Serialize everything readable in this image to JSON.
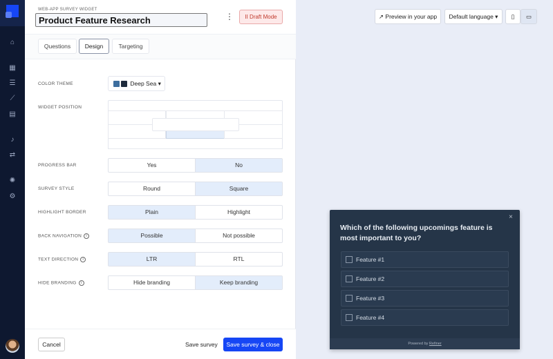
{
  "sidebar": {
    "icons": [
      "home-icon",
      "table-icon",
      "list-icon",
      "chart-icon",
      "layout-icon",
      "bell-icon",
      "sync-icon",
      "lightbulb-icon",
      "gear-icon"
    ]
  },
  "header": {
    "subtitle": "WEB-APP SURVEY WIDGET",
    "title": "Product Feature Research",
    "draft_label": "II Draft Mode",
    "more": "⋮"
  },
  "tabs": [
    {
      "label": "Questions"
    },
    {
      "label": "Design",
      "active": true
    },
    {
      "label": "Targeting"
    }
  ],
  "design": {
    "color_theme": {
      "label": "COLOR THEME",
      "value": "Deep Sea",
      "swatches": [
        "#3d6e9e",
        "#1e2b3c"
      ]
    },
    "widget_position": {
      "label": "WIDGET POSITION",
      "selected": "bottom-center"
    },
    "options": [
      {
        "label": "PROGRESS BAR",
        "choices": [
          "Yes",
          "No"
        ],
        "selected": 1,
        "info": false
      },
      {
        "label": "SURVEY STYLE",
        "choices": [
          "Round",
          "Square"
        ],
        "selected": 1,
        "info": false
      },
      {
        "label": "HIGHLIGHT BORDER",
        "choices": [
          "Plain",
          "Highlight"
        ],
        "selected": 0,
        "info": false
      },
      {
        "label": "BACK NAVIGATION",
        "choices": [
          "Possible",
          "Not possible"
        ],
        "selected": 0,
        "info": true
      },
      {
        "label": "TEXT DIRECTION",
        "choices": [
          "LTR",
          "RTL"
        ],
        "selected": 0,
        "info": true
      },
      {
        "label": "HIDE BRANDING",
        "choices": [
          "Hide branding",
          "Keep branding"
        ],
        "selected": 1,
        "info": true
      }
    ]
  },
  "footer": {
    "cancel": "Cancel",
    "save": "Save survey",
    "save_close": "Save survey & close"
  },
  "preview": {
    "preview_btn": "Preview in your app",
    "language": "Default language",
    "device": "desktop"
  },
  "widget": {
    "question": "Which of the following upcomings feature is most important to you?",
    "options": [
      "Feature #1",
      "Feature #2",
      "Feature #3",
      "Feature #4"
    ],
    "powered_by": "Powered by",
    "brand": "Refiner",
    "close": "×"
  },
  "colors": {
    "accent": "#1646f5",
    "sidebar": "#0e1830",
    "widget_bg": "#253548"
  }
}
